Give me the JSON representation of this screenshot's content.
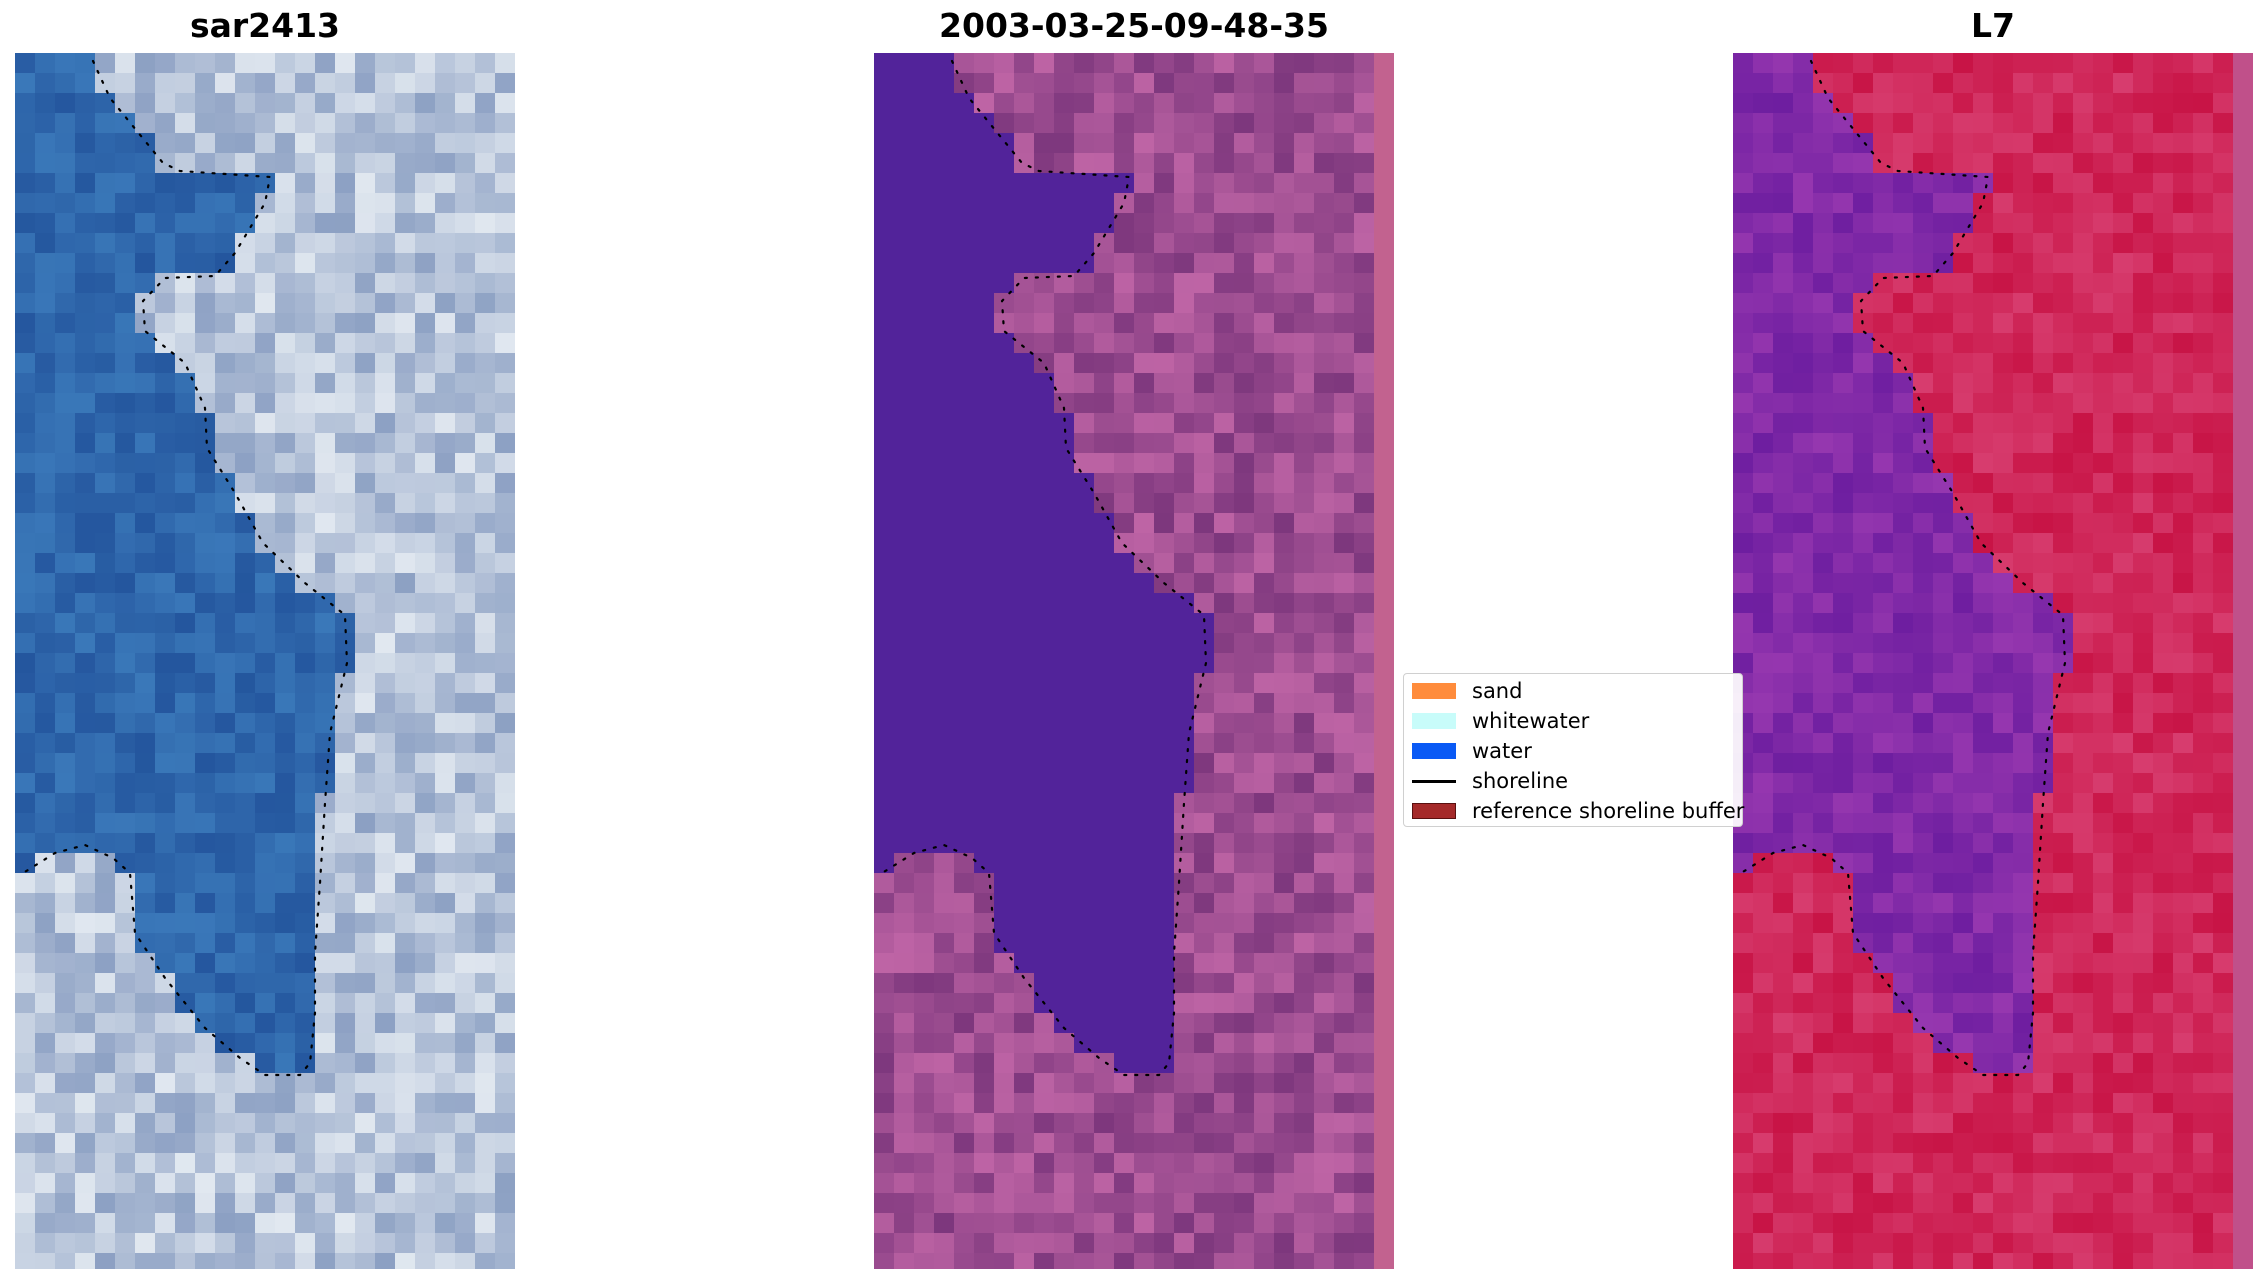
{
  "panels": [
    {
      "title": "sar2413"
    },
    {
      "title": "2003-03-25-09-48-35"
    },
    {
      "title": "L7"
    }
  ],
  "legend": {
    "items": [
      {
        "label": "sand",
        "color": "#ff8c3c"
      },
      {
        "label": "whitewater",
        "color": "#c8fcfa"
      },
      {
        "label": "water",
        "color": "#0a5af5"
      },
      {
        "label": "shoreline",
        "color": "#000000"
      },
      {
        "label": "reference shoreline buffer",
        "color": "#a52a2a"
      }
    ]
  },
  "colors": {
    "rgb_water": "#2a5ea8",
    "rgb_land": "#a9b8cf",
    "classified_water": "#52239a",
    "classified_land": "#9c4e8a",
    "mndwi_water": "#7a22a8",
    "mndwi_land": "#c6184a"
  }
}
